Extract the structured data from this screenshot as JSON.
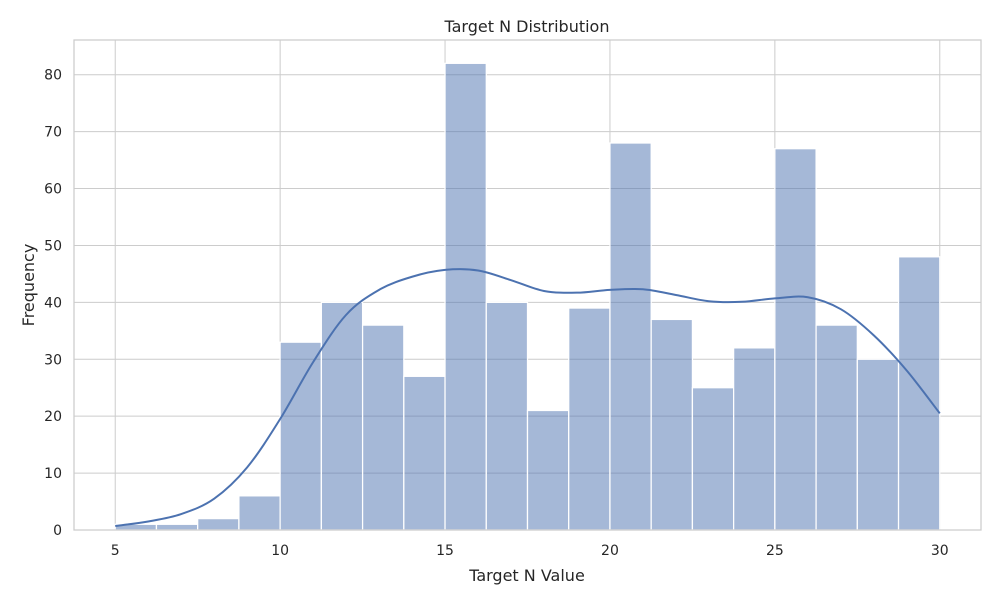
{
  "chart_data": {
    "type": "bar",
    "title": "Target N Distribution",
    "xlabel": "Target N Value",
    "ylabel": "Frequency",
    "bin_edges": [
      5,
      6.25,
      7.5,
      8.75,
      10,
      11.25,
      12.5,
      13.75,
      15,
      16.25,
      17.5,
      18.75,
      20,
      21.25,
      22.5,
      23.75,
      25,
      26.25,
      27.5,
      28.75,
      30
    ],
    "values": [
      1,
      1,
      2,
      6,
      33,
      40,
      36,
      27,
      82,
      40,
      21,
      39,
      68,
      37,
      25,
      32,
      67,
      36,
      30,
      48
    ],
    "kde": {
      "x": [
        5,
        6,
        7,
        8,
        9,
        10,
        11,
        12,
        13,
        14,
        15,
        16,
        17,
        18,
        19,
        20,
        21,
        22,
        23,
        24,
        25,
        26,
        27,
        28,
        29,
        30
      ],
      "y": [
        0.7,
        1.5,
        2.8,
        5.5,
        11,
        19.5,
        29.5,
        37.8,
        42.2,
        44.5,
        45.7,
        45.6,
        43.9,
        42.0,
        41.7,
        42.2,
        42.3,
        41.3,
        40.2,
        40.1,
        40.7,
        40.9,
        38.8,
        34.2,
        28.0,
        20.5
      ]
    },
    "color": "#4c72b0",
    "xlim": [
      3.75,
      31.25
    ],
    "ylim": [
      0,
      86.1
    ],
    "xticks": [
      5,
      10,
      15,
      20,
      25,
      30
    ],
    "yticks": [
      0,
      10,
      20,
      30,
      40,
      50,
      60,
      70,
      80
    ],
    "grid": true
  }
}
